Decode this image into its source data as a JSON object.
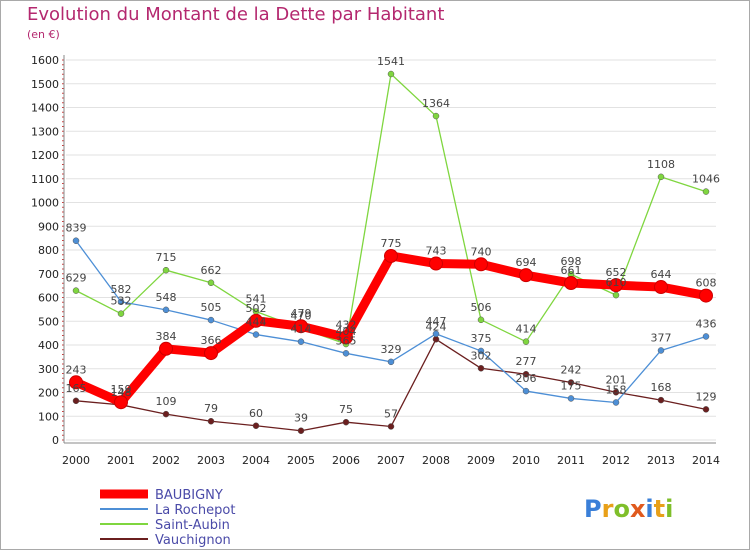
{
  "title": "Evolution du Montant de la Dette par Habitant",
  "unit": "(en €)",
  "brand": "Proxiti",
  "chart_data": {
    "type": "line",
    "x": [
      "2000",
      "2001",
      "2002",
      "2003",
      "2004",
      "2005",
      "2006",
      "2007",
      "2008",
      "2009",
      "2010",
      "2011",
      "2012",
      "2013",
      "2014"
    ],
    "ylim": [
      0,
      1600
    ],
    "yticks": [
      0,
      100,
      200,
      300,
      400,
      500,
      600,
      700,
      800,
      900,
      1000,
      1100,
      1200,
      1300,
      1400,
      1500,
      1600
    ],
    "grid": "horizontal",
    "legend_position": "bottom-left",
    "series": [
      {
        "name": "BAUBIGNY",
        "color": "#ff0000",
        "values": [
          243,
          159,
          384,
          366,
          502,
          479,
          432,
          775,
          743,
          740,
          694,
          661,
          652,
          644,
          608
        ]
      },
      {
        "name": "La Rochepot",
        "color": "#4d8fd6",
        "values": [
          839,
          582,
          548,
          505,
          444,
          414,
          365,
          329,
          447,
          375,
          206,
          175,
          158,
          377,
          436
        ]
      },
      {
        "name": "Saint-Aubin",
        "color": "#7fd63f",
        "values": [
          629,
          532,
          715,
          662,
          541,
          470,
          404,
          1541,
          1364,
          506,
          414,
          698,
          610,
          1108,
          1046
        ]
      },
      {
        "name": "Vauchignon",
        "color": "#6b1f1f",
        "values": [
          165,
          148,
          109,
          79,
          60,
          39,
          75,
          57,
          424,
          302,
          277,
          242,
          201,
          168,
          129
        ]
      }
    ]
  }
}
